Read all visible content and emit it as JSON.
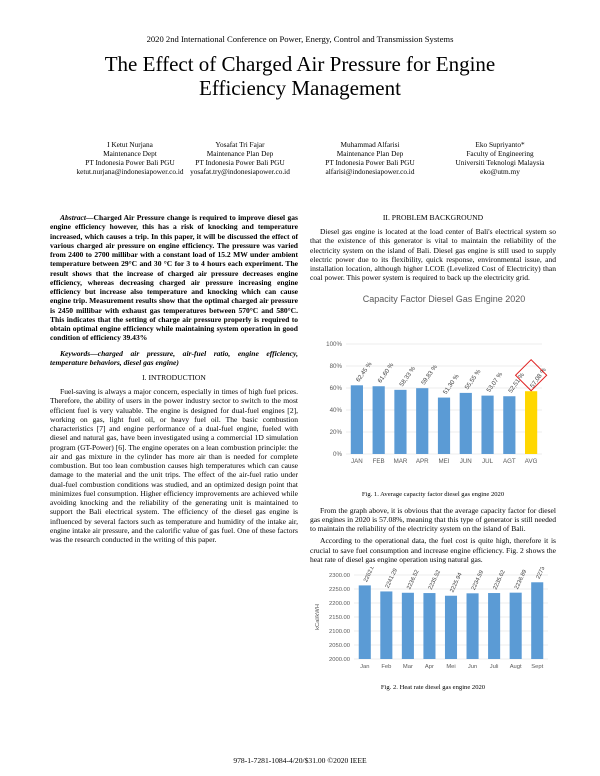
{
  "header": {
    "conference": "2020 2nd International Conference on Power, Energy, Control and Transmission Systems",
    "title": "The Effect of Charged Air Pressure for Engine Efficiency Management"
  },
  "authors": [
    {
      "name": "I Ketut Nurjana",
      "dept": "Maintenance Dept",
      "org": "PT Indonesia Power Bali PGU",
      "email": "ketut.nurjana@indonesiapower.co.id"
    },
    {
      "name": "Yosafat Tri Fajar",
      "dept": "Maintenance Plan Dep",
      "org": "PT Indonesia Power Bali PGU",
      "email": "yosafat.try@indonesiapower.co.id"
    },
    {
      "name": "Muhammad Alfarisi",
      "dept": "Maintenance Plan Dep",
      "org": "PT Indonesia Power Bali PGU",
      "email": "alfarisi@indonesiapower.co.id"
    },
    {
      "name": "Eko Supriyanto*",
      "dept": "Faculty of Engineering",
      "org": "Universiti Teknologi Malaysia",
      "email": "eko@utm.my"
    }
  ],
  "abstract": {
    "label": "Abstract—",
    "text": "Charged Air Pressure change is required to improve diesel gas engine efficiency however, this has a risk of knocking and temperature increased, which causes a trip. In this paper, it will be discussed the effect of various charged air pressure on engine efficiency. The pressure was varied from 2400 to 2700 millibar with a constant load of 15.2 MW under ambient temperature between 29°C and 30 °C for 3 to 4 hours each experiment. The result shows that the increase of charged air pressure decreases engine efficiency, whereas decreasing charged air pressure increasing engine efficiency but increase also temperature and knocking which can cause engine trip. Measurement results show that the optimal charged air pressure is 2450 millibar with exhaust gas temperatures between 570°C and 580°C. This indicates that the setting of charge air pressure properly is required to obtain optimal engine efficiency while maintaining system operation in good condition of efficiency 39.43%"
  },
  "keywords": {
    "label": "Keywords—",
    "text": "charged air pressure, air-fuel ratio, engine efficiency, temperature behaviors, diesel gas engine)"
  },
  "sections": [
    {
      "heading": "I.  INTRODUCTION",
      "paragraphs": [
        "Fuel-saving is always a major concern, especially in times of high fuel prices. Therefore, the ability of users in the power industry sector to switch to the most efficient fuel is very valuable. The engine is designed for dual-fuel engines [2], working on gas, light fuel oil, or heavy fuel oil. The basic combustion characteristics [7] and engine performance of a dual-fuel engine, fueled with diesel and natural gas, have been investigated using a commercial 1D simulation program (GT-Power) [6]. The engine operates on a lean combustion principle: the air and gas mixture in the cylinder has more air than is needed for complete combustion. But too lean combustion causes high temperatures which can cause damage to the material and the unit trips. The effect of the air-fuel ratio under dual-fuel combustion conditions was studied, and an optimized design point that minimizes fuel consumption. Higher efficiency improvements are achieved while avoiding knocking and the reliability of the generating unit is maintained to support the Bali electrical system. The efficiency of the diesel gas engine is influenced by several factors such as temperature and humidity of the intake air, engine intake air pressure, and the calorific value of gas fuel. One of these factors was the research conducted in the writing of this paper."
      ]
    },
    {
      "heading": "II.  PROBLEM BACKGROUND",
      "paragraphs": [
        "Diesel gas engine is located at the load center of Bali's electrical system so that the existence of this generator is vital to maintain the reliability of the electricity system on the island of Bali. Diesel gas engine is still used to supply electric power due to its flexibility, quick response, environmental issue, and installation location, although higher LCOE (Levelized Cost of Electricity) than coal power. This power system is required to back up the electricity grid.",
        "From the graph above, it is obvious that the average capacity factor for diesel gas engines in 2020 is 57.08%, meaning that this type of generator is still needed to maintain the reliability of the electricity system on the island of Bali.",
        "According to the operational data, the fuel cost is quite high, therefore it is crucial to save fuel consumption and increase engine efficiency. Fig. 2 shows the heat rate of diesel gas engine operation using natural gas."
      ]
    }
  ],
  "figures": [
    {
      "caption": "Fig. 1.   Average capacity factor diesel gas engine 2020"
    },
    {
      "caption": "Fig. 2.   Heat rate diesel gas engine 2020"
    }
  ],
  "footer": "978-1-7281-1084-4/20/$31.00 ©2020 IEEE",
  "chart_data": [
    {
      "type": "bar",
      "title": "Capacity Factor Diesel Gas Engine 2020",
      "categories": [
        "JAN",
        "FEB",
        "MAR",
        "APR",
        "MEI",
        "JUN",
        "JUL",
        "AGT",
        "AVG"
      ],
      "values": [
        62.45,
        61.6,
        58.33,
        59.83,
        51.3,
        55.55,
        53.07,
        52.51,
        57.08
      ],
      "value_labels": [
        "62,45 %",
        "61,60 %",
        "58,33 %",
        "59,83 %",
        "51,30 %",
        "55,55 %",
        "53,07 %",
        "52,51 %",
        "57,08 %"
      ],
      "colors": [
        "#5b9bd5",
        "#5b9bd5",
        "#5b9bd5",
        "#5b9bd5",
        "#5b9bd5",
        "#5b9bd5",
        "#5b9bd5",
        "#5b9bd5",
        "#ffd700"
      ],
      "ylim": [
        0,
        100
      ],
      "yticks": [
        {
          "value": 0,
          "label": "0%"
        },
        {
          "value": 20,
          "label": "20%"
        },
        {
          "value": 40,
          "label": "40%"
        },
        {
          "value": 60,
          "label": "60%"
        },
        {
          "value": 80,
          "label": "80%"
        },
        {
          "value": 100,
          "label": "100%"
        }
      ],
      "grid": true
    },
    {
      "type": "bar",
      "y_label": "kCal/kWH",
      "categories": [
        "Jan",
        "Feb",
        "Mar",
        "Apr",
        "Mei",
        "Jun",
        "Juli",
        "Augt",
        "Sept"
      ],
      "values": [
        2262.81,
        2241.29,
        2236.52,
        2235.52,
        2225.94,
        2234.59,
        2235.62,
        2236.89,
        2273.99
      ],
      "colors": [
        "#5b9bd5",
        "#5b9bd5",
        "#5b9bd5",
        "#5b9bd5",
        "#5b9bd5",
        "#5b9bd5",
        "#5b9bd5",
        "#5b9bd5",
        "#5b9bd5"
      ],
      "ylim": [
        2000,
        2300
      ],
      "yticks": [
        {
          "value": 2000,
          "label": "2000.00"
        },
        {
          "value": 2050,
          "label": "2050.00"
        },
        {
          "value": 2100,
          "label": "2100.00"
        },
        {
          "value": 2150,
          "label": "2150.00"
        },
        {
          "value": 2200,
          "label": "2200.00"
        },
        {
          "value": 2250,
          "label": "2250.00"
        },
        {
          "value": 2300,
          "label": "2300.00"
        }
      ],
      "grid": true
    }
  ]
}
